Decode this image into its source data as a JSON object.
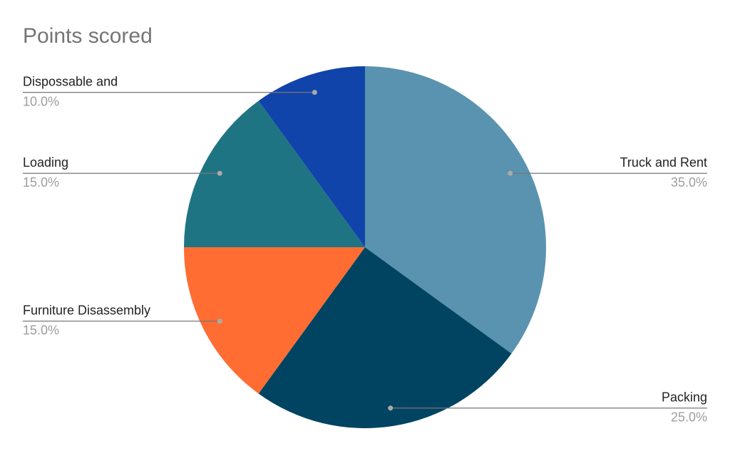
{
  "chart_data": {
    "type": "pie",
    "title": "Points scored",
    "categories": [
      "Truck and Rent",
      "Packing",
      "Furniture Disassembly",
      "Loading",
      "Dispossable and"
    ],
    "values": [
      35,
      25,
      15,
      15,
      10
    ],
    "value_labels": [
      "35.0%",
      "25.0%",
      "15.0%",
      "15.0%",
      "10.0%"
    ],
    "colors": [
      "#5a93af",
      "#004461",
      "#ff6d33",
      "#1f7483",
      "#1144aa"
    ]
  }
}
